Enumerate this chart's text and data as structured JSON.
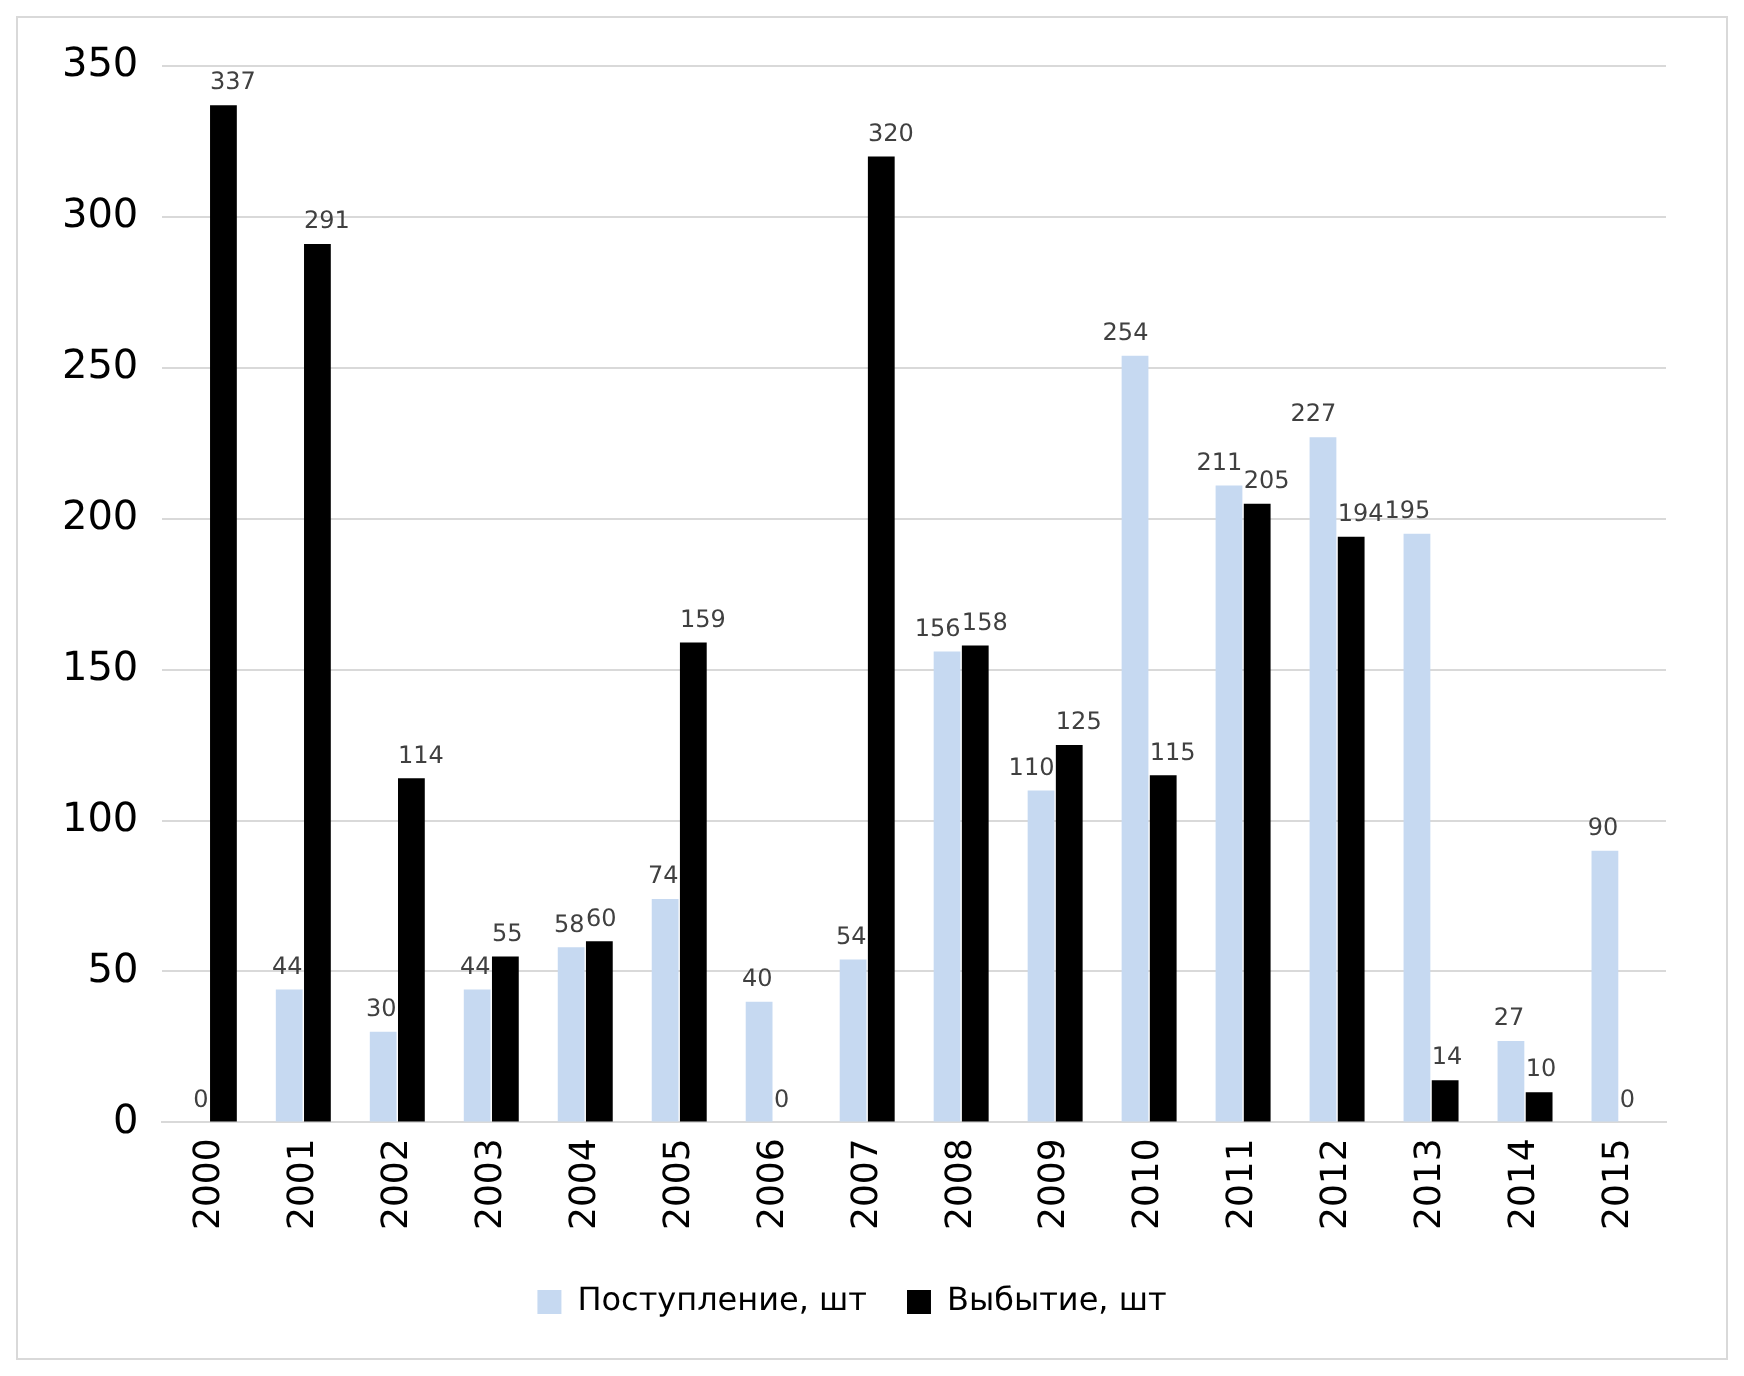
{
  "chart_data": {
    "type": "bar",
    "categories": [
      "2000",
      "2001",
      "2002",
      "2003",
      "2004",
      "2005",
      "2006",
      "2007",
      "2008",
      "2009",
      "2010",
      "2011",
      "2012",
      "2013",
      "2014",
      "2015"
    ],
    "series": [
      {
        "name": "Поступление, шт",
        "color": "#c6d9f1",
        "values": [
          0,
          44,
          30,
          44,
          58,
          74,
          40,
          54,
          156,
          110,
          254,
          211,
          227,
          195,
          27,
          90
        ]
      },
      {
        "name": "Выбытие, шт",
        "color": "#000000",
        "values": [
          337,
          291,
          114,
          55,
          60,
          159,
          0,
          320,
          158,
          125,
          115,
          205,
          194,
          14,
          10,
          0
        ]
      }
    ],
    "ylim": [
      0,
      350
    ],
    "yticks": [
      0,
      50,
      100,
      150,
      200,
      250,
      300,
      350
    ],
    "grid": "y",
    "legend": "bottom",
    "data_labels": true
  }
}
